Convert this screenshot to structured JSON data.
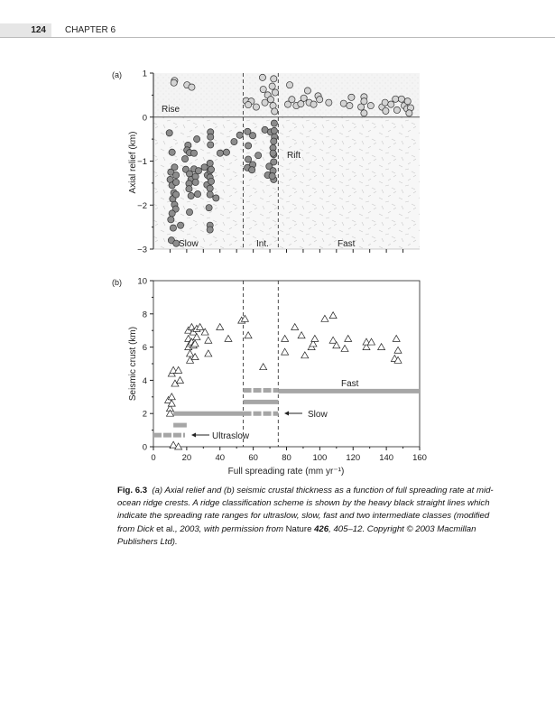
{
  "header": {
    "page_number": "124",
    "chapter": "CHAPTER 6"
  },
  "caption": {
    "label": "Fig. 6.3",
    "text1": "(a) Axial relief and (b) seismic crustal thickness as a function of full spreading rate at mid-ocean ridge crests. A ridge classification scheme is shown by the heavy black straight lines which indicate the spreading rate ranges for ultraslow, slow, fast and two intermediate classes (modified from Dick ",
    "etal": "et al.",
    "text2": ", 2003, with permission from ",
    "journal": "Nature",
    "volume": "426",
    "text3": ", 405–12. Copyright © 2003 Macmillan Publishers Ltd)."
  },
  "chart_data": [
    {
      "type": "scatter",
      "panel": "(a)",
      "xlabel": "",
      "ylabel": "Axial relief (km)",
      "xlim": [
        0,
        160
      ],
      "ylim": [
        -3,
        1
      ],
      "yticks": [
        "1",
        "0",
        "−1",
        "−2",
        "−3"
      ],
      "boundaries": [
        54,
        75
      ],
      "annotations": {
        "rise": "Rise",
        "rift": "Rift",
        "slow": "Slow",
        "int": "Int.",
        "fast": "Fast"
      },
      "series": [
        {
          "name": "Rise (axial high)",
          "color": "#d4d4d4",
          "points": [
            [
              12.7,
              0.83
            ],
            [
              12.3,
              0.78
            ],
            [
              20.2,
              0.73
            ],
            [
              23,
              0.68
            ],
            [
              55.7,
              0.37
            ],
            [
              58.8,
              0.36
            ],
            [
              61.8,
              0.23
            ],
            [
              57,
              0.28
            ],
            [
              65.6,
              0.9
            ],
            [
              66,
              0.63
            ],
            [
              68.7,
              0.5
            ],
            [
              67,
              0.33
            ],
            [
              70.5,
              0.4
            ],
            [
              72.3,
              0.87
            ],
            [
              71.4,
              0.7
            ],
            [
              73.2,
              0.56
            ],
            [
              71.9,
              0.26
            ],
            [
              72.8,
              0.13
            ],
            [
              81.9,
              0.73
            ],
            [
              80.8,
              0.29
            ],
            [
              83.2,
              0.4
            ],
            [
              85.9,
              0.26
            ],
            [
              88.6,
              0.3
            ],
            [
              90.4,
              0.43
            ],
            [
              92.7,
              0.6
            ],
            [
              93.6,
              0.33
            ],
            [
              96.3,
              0.29
            ],
            [
              99,
              0.48
            ],
            [
              99.9,
              0.4
            ],
            [
              105.4,
              0.33
            ],
            [
              114.3,
              0.31
            ],
            [
              117.9,
              0.26
            ],
            [
              119,
              0.45
            ],
            [
              124.8,
              0.23
            ],
            [
              126.6,
              0.46
            ],
            [
              126.6,
              0.36
            ],
            [
              126.6,
              0.09
            ],
            [
              130.6,
              0.26
            ],
            [
              137.4,
              0.23
            ],
            [
              139.2,
              0.33
            ],
            [
              139.6,
              0.14
            ],
            [
              142.8,
              0.29
            ],
            [
              145.5,
              0.41
            ],
            [
              146.4,
              0.16
            ],
            [
              149.1,
              0.41
            ],
            [
              150.8,
              0.26
            ],
            [
              152.8,
              0.36
            ],
            [
              152.4,
              0.19
            ],
            [
              154.6,
              0.21
            ],
            [
              153.7,
              0.09
            ]
          ]
        },
        {
          "name": "Rift (axial valley)",
          "color": "#8c8c8c",
          "points": [
            [
              9.6,
              -0.36
            ],
            [
              11.2,
              -0.8
            ],
            [
              10.5,
              -1.25
            ],
            [
              10.1,
              -1.42
            ],
            [
              11.2,
              -1.55
            ],
            [
              12.3,
              -1.72
            ],
            [
              11.6,
              -1.86
            ],
            [
              12.7,
              -1.99
            ],
            [
              13.4,
              -2.09
            ],
            [
              11.2,
              -2.19
            ],
            [
              10.5,
              -2.33
            ],
            [
              11.9,
              -2.52
            ],
            [
              16.3,
              -2.46
            ],
            [
              10.8,
              -2.8
            ],
            [
              13.7,
              -2.87
            ],
            [
              12.7,
              -1.14
            ],
            [
              13.6,
              -1.32
            ],
            [
              13.6,
              -1.48
            ],
            [
              13.6,
              -1.76
            ],
            [
              19,
              -0.95
            ],
            [
              20.8,
              -0.64
            ],
            [
              20.2,
              -0.75
            ],
            [
              21.7,
              -0.81
            ],
            [
              24.4,
              -0.82
            ],
            [
              19.5,
              -1.19
            ],
            [
              21.7,
              -1.29
            ],
            [
              22.6,
              -1.42
            ],
            [
              21.4,
              -1.51
            ],
            [
              21.4,
              -1.63
            ],
            [
              22.6,
              -1.79
            ],
            [
              21.7,
              -2.16
            ],
            [
              24.4,
              -1.18
            ],
            [
              25.3,
              -1.35
            ],
            [
              25.3,
              -1.48
            ],
            [
              26.6,
              -1.75
            ],
            [
              26.1,
              -0.5
            ],
            [
              27.1,
              -1.22
            ],
            [
              30.7,
              -1.14
            ],
            [
              32.5,
              -1.32
            ],
            [
              32.2,
              -1.54
            ],
            [
              34.3,
              -0.34
            ],
            [
              34.3,
              -0.45
            ],
            [
              34.3,
              -0.63
            ],
            [
              34,
              -1.05
            ],
            [
              34,
              -1.22
            ],
            [
              34,
              -1.37
            ],
            [
              34,
              -1.62
            ],
            [
              34,
              -1.76
            ],
            [
              33.4,
              -2.06
            ],
            [
              34,
              -2.46
            ],
            [
              34,
              -2.56
            ],
            [
              34.7,
              -1.19
            ],
            [
              34.7,
              -1.46
            ],
            [
              37.6,
              -1.84
            ],
            [
              40.1,
              -0.82
            ],
            [
              43.9,
              -0.8
            ],
            [
              48.5,
              -0.56
            ],
            [
              51.9,
              -0.41
            ],
            [
              56.6,
              -0.33
            ],
            [
              57,
              -0.65
            ],
            [
              59.7,
              -0.42
            ],
            [
              57,
              -0.96
            ],
            [
              56.5,
              -1.15
            ],
            [
              59.7,
              -1.08
            ],
            [
              59.2,
              -1.2
            ],
            [
              63,
              -0.87
            ],
            [
              67,
              -0.29
            ],
            [
              68.7,
              -1.32
            ],
            [
              69.6,
              -1.12
            ],
            [
              70.5,
              -0.34
            ],
            [
              72.6,
              -0.14
            ],
            [
              72.6,
              -0.31
            ],
            [
              72.8,
              -0.45
            ],
            [
              72.3,
              -0.55
            ],
            [
              71.9,
              -0.7
            ],
            [
              72.3,
              -0.85
            ],
            [
              72.3,
              -1.02
            ],
            [
              71.9,
              -1.22
            ],
            [
              72.3,
              -1.42
            ],
            [
              71.4,
              -1.34
            ],
            [
              71.9,
              -0.82
            ]
          ]
        }
      ]
    },
    {
      "type": "scatter",
      "panel": "(b)",
      "xlabel": "Full spreading rate (mm yr⁻¹)",
      "ylabel": "Seismic crust (km)",
      "xlim": [
        0,
        160
      ],
      "ylim": [
        0,
        10
      ],
      "xticks": [
        "0",
        "20",
        "40",
        "60",
        "80",
        "100",
        "120",
        "140",
        "160"
      ],
      "yticks": [
        "0",
        "2",
        "4",
        "6",
        "8",
        "10"
      ],
      "boundaries": [
        54,
        75
      ],
      "annotations": {
        "fast": "Fast",
        "slow": "Slow",
        "ultraslow": "Ultraslow"
      },
      "points": [
        [
          9,
          2.8
        ],
        [
          10,
          2.3
        ],
        [
          10,
          2.0
        ],
        [
          11,
          3.0
        ],
        [
          11,
          2.6
        ],
        [
          11,
          4.4
        ],
        [
          12,
          4.6
        ],
        [
          13,
          3.8
        ],
        [
          15,
          4.6
        ],
        [
          16,
          4.0
        ],
        [
          12,
          0.1
        ],
        [
          15,
          0
        ],
        [
          21,
          7.0
        ],
        [
          21,
          6.5
        ],
        [
          21,
          6.0
        ],
        [
          22,
          5.2
        ],
        [
          22,
          5.6
        ],
        [
          22,
          6.2
        ],
        [
          23,
          7.2
        ],
        [
          23,
          6.3
        ],
        [
          24,
          6.9
        ],
        [
          24,
          6.1
        ],
        [
          25,
          5.4
        ],
        [
          25,
          6.2
        ],
        [
          26,
          7.1
        ],
        [
          26,
          6.6
        ],
        [
          28,
          7.2
        ],
        [
          31,
          6.9
        ],
        [
          33,
          5.6
        ],
        [
          33,
          6.4
        ],
        [
          40,
          7.2
        ],
        [
          45,
          6.5
        ],
        [
          53,
          7.6
        ],
        [
          55,
          7.7
        ],
        [
          57,
          6.7
        ],
        [
          66,
          4.8
        ],
        [
          79,
          6.5
        ],
        [
          79,
          5.7
        ],
        [
          85,
          7.2
        ],
        [
          89,
          6.7
        ],
        [
          91,
          5.5
        ],
        [
          95,
          6.0
        ],
        [
          96,
          6.2
        ],
        [
          97,
          6.5
        ],
        [
          103,
          7.7
        ],
        [
          108,
          7.9
        ],
        [
          108,
          6.4
        ],
        [
          110,
          6.1
        ],
        [
          115,
          5.9
        ],
        [
          117,
          6.5
        ],
        [
          128,
          6.0
        ],
        [
          128,
          6.3
        ],
        [
          131,
          6.3
        ],
        [
          137,
          6.0
        ],
        [
          145,
          5.3
        ],
        [
          146,
          6.5
        ],
        [
          147,
          5.8
        ],
        [
          147,
          5.2
        ]
      ],
      "class_bars": [
        {
          "name": "ultraslow",
          "x": [
            0,
            19
          ],
          "y": 0.7,
          "dashed": true
        },
        {
          "name": "ultraslow-slow",
          "x": [
            12,
            20
          ],
          "y": 1.3,
          "dashed": false
        },
        {
          "name": "slow",
          "x": [
            12,
            54
          ],
          "y": 2.0,
          "dashed": false
        },
        {
          "name": "slow-int",
          "x": [
            54,
            75
          ],
          "y": 2.0,
          "dashed": true
        },
        {
          "name": "intermediate",
          "x": [
            54,
            75
          ],
          "y": 2.7,
          "dashed": false
        },
        {
          "name": "fast-int",
          "x": [
            54,
            75
          ],
          "y": 3.4,
          "dashed": true
        },
        {
          "name": "fast",
          "x": [
            75,
            160
          ],
          "y": 3.35,
          "dashed": false
        }
      ]
    }
  ]
}
